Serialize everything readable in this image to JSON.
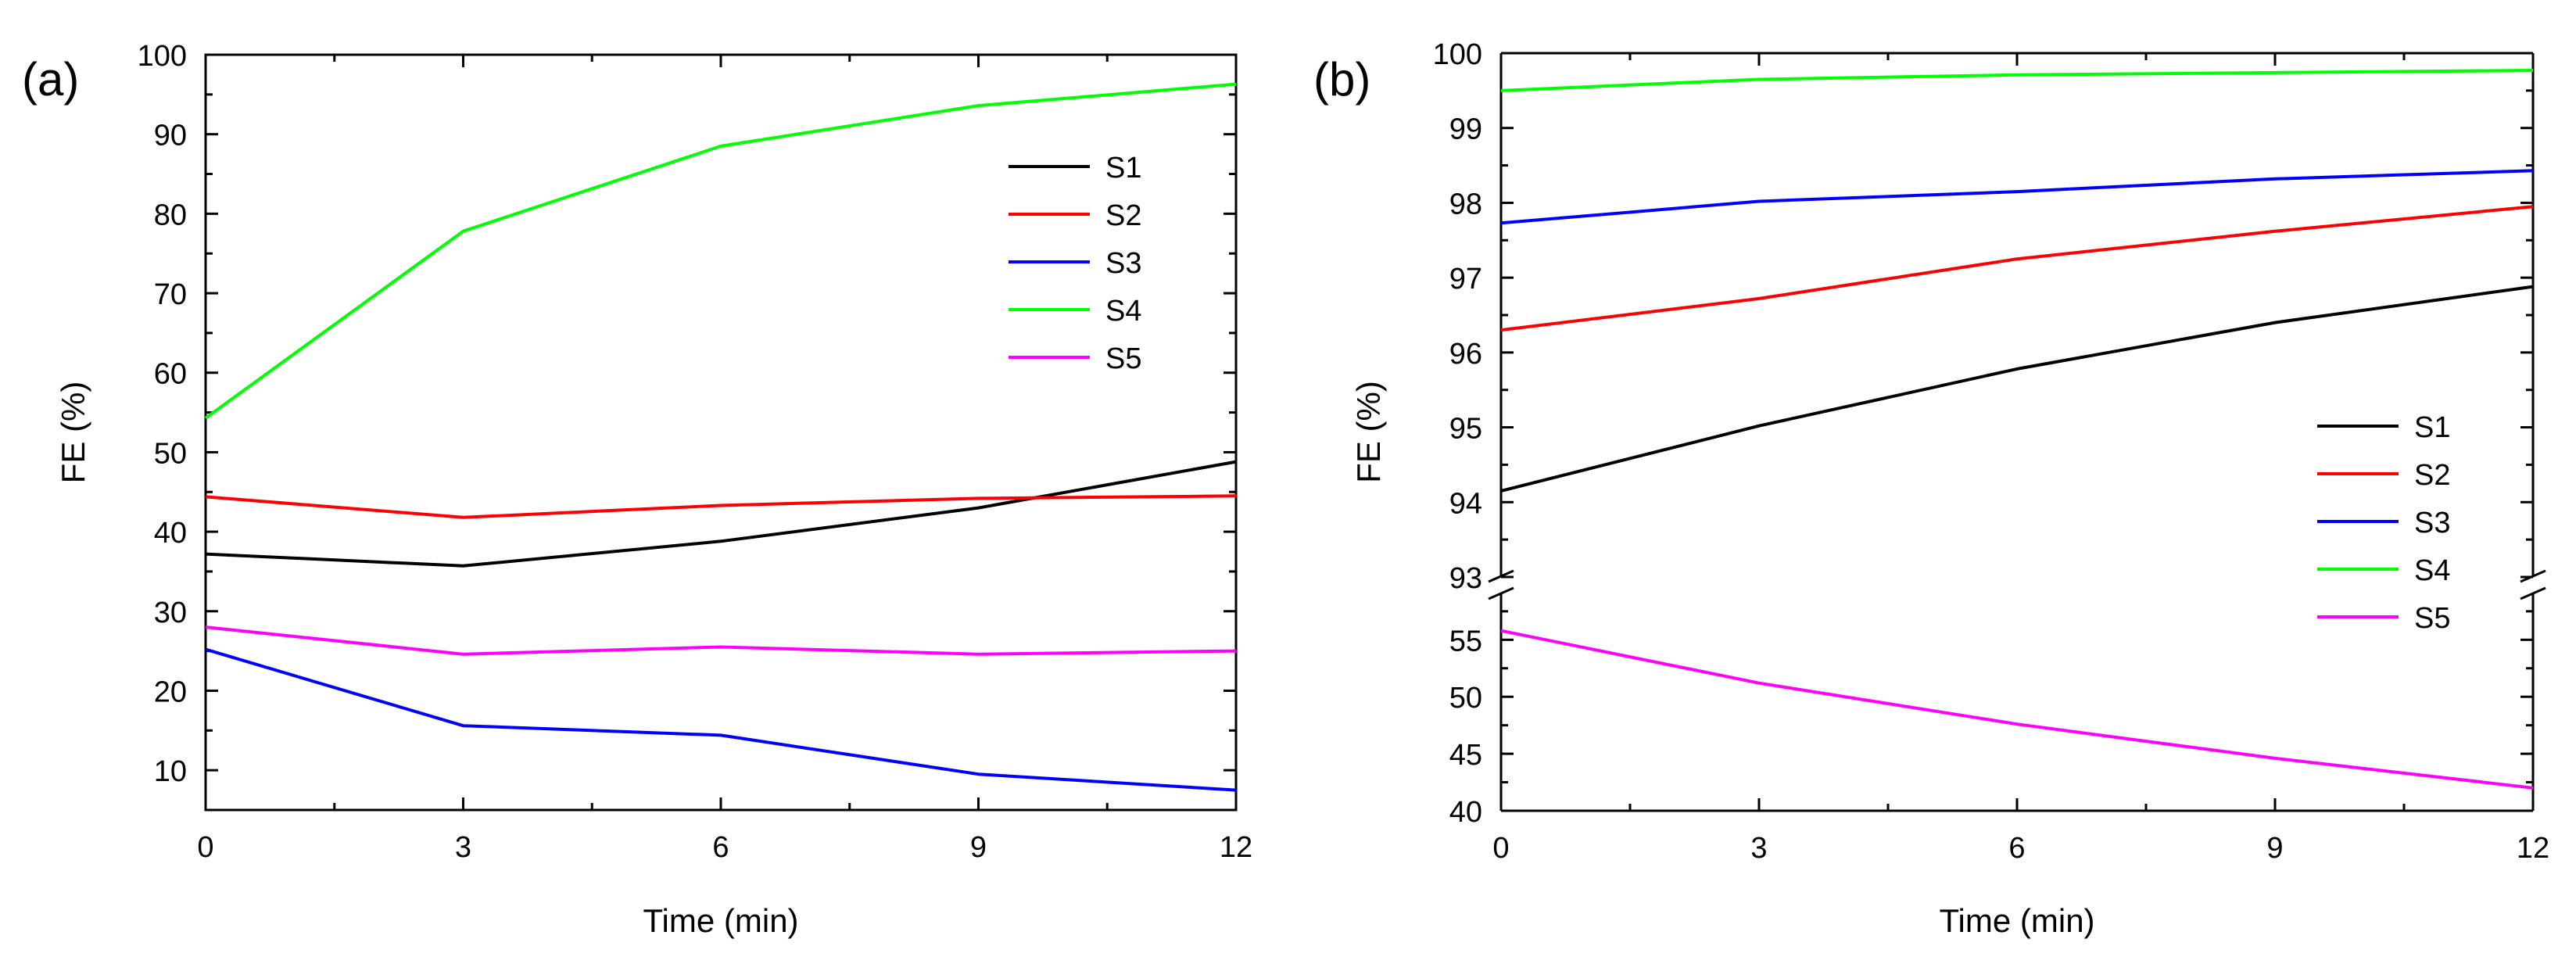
{
  "chart_data": [
    {
      "type": "line",
      "panel_label": "(a)",
      "title": "",
      "xlabel": "Time (min)",
      "ylabel": "FE (%)",
      "xlim": [
        0,
        12
      ],
      "ylim": [
        5,
        100
      ],
      "x": [
        0,
        3,
        6,
        9,
        12
      ],
      "xticks": [
        0,
        3,
        6,
        9,
        12
      ],
      "yticks": [
        10,
        20,
        30,
        40,
        50,
        60,
        70,
        80,
        90,
        100
      ],
      "grid": false,
      "legend_position": "top-right",
      "series": [
        {
          "name": "S1",
          "color": "#000000",
          "values": [
            37.2,
            35.7,
            38.8,
            43.0,
            48.8
          ]
        },
        {
          "name": "S2",
          "color": "#ff0000",
          "values": [
            44.4,
            41.8,
            43.3,
            44.2,
            44.5
          ]
        },
        {
          "name": "S3",
          "color": "#0000ff",
          "values": [
            25.2,
            15.6,
            14.4,
            9.5,
            7.5
          ]
        },
        {
          "name": "S4",
          "color": "#00ff00",
          "values": [
            54.3,
            77.8,
            88.5,
            93.6,
            96.3
          ]
        },
        {
          "name": "S5",
          "color": "#ff00ff",
          "values": [
            28.0,
            24.6,
            25.5,
            24.6,
            25.0
          ]
        }
      ]
    },
    {
      "type": "line",
      "panel_label": "(b)",
      "title": "",
      "xlabel": "Time (min)",
      "ylabel": "FE (%)",
      "xlim": [
        0,
        12
      ],
      "x": [
        0,
        3,
        6,
        9,
        12
      ],
      "xticks": [
        0,
        3,
        6,
        9,
        12
      ],
      "grid": false,
      "legend_position": "bottom-right",
      "axis_break": true,
      "y_segments": [
        {
          "range": [
            93,
            100
          ],
          "yticks": [
            93,
            94,
            95,
            96,
            97,
            98,
            99,
            100
          ]
        },
        {
          "range": [
            40,
            59
          ],
          "yticks": [
            40,
            45,
            50,
            55
          ]
        }
      ],
      "series": [
        {
          "name": "S1",
          "color": "#000000",
          "segment": 0,
          "values": [
            94.15,
            95.02,
            95.78,
            96.4,
            96.88
          ]
        },
        {
          "name": "S2",
          "color": "#ff0000",
          "segment": 0,
          "values": [
            96.3,
            96.72,
            97.25,
            97.62,
            97.95
          ]
        },
        {
          "name": "S3",
          "color": "#0000ff",
          "segment": 0,
          "values": [
            97.73,
            98.02,
            98.15,
            98.32,
            98.43
          ]
        },
        {
          "name": "S4",
          "color": "#00ff00",
          "segment": 0,
          "values": [
            99.5,
            99.65,
            99.71,
            99.74,
            99.77
          ]
        },
        {
          "name": "S5",
          "color": "#ff00ff",
          "segment": 1,
          "values": [
            55.8,
            51.2,
            47.6,
            44.6,
            42.0
          ]
        }
      ]
    }
  ]
}
